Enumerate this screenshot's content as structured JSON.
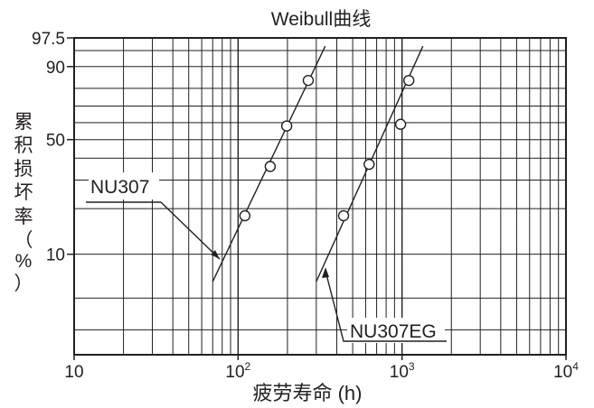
{
  "chart_data": {
    "type": "scatter",
    "title": "Weibull曲线",
    "xlabel": "疲劳寿命 (h)",
    "ylabel": [
      "累",
      "积",
      "损",
      "坏",
      "率",
      "（",
      "%",
      "）"
    ],
    "x_scale": "log",
    "x_range": [
      10,
      10000
    ],
    "x_ticks": [
      {
        "value": 10,
        "base": "10",
        "exp": ""
      },
      {
        "value": 100,
        "base": "10",
        "exp": "2"
      },
      {
        "value": 1000,
        "base": "10",
        "exp": "3"
      },
      {
        "value": 10000,
        "base": "10",
        "exp": "4"
      }
    ],
    "y_scale": "weibull",
    "y_range": [
      2,
      97.5
    ],
    "y_ticks": [
      {
        "value": 97.5,
        "label": "97.5"
      },
      {
        "value": 90,
        "label": "90"
      },
      {
        "value": 50,
        "label": "50"
      },
      {
        "value": 10,
        "label": "10"
      }
    ],
    "grid": true,
    "series": [
      {
        "name": "NU307",
        "points": [
          {
            "x": 110,
            "y": 18
          },
          {
            "x": 157,
            "y": 36
          },
          {
            "x": 198,
            "y": 58
          },
          {
            "x": 268,
            "y": 84
          }
        ],
        "fit_line": [
          {
            "x": 70,
            "y": 6.5
          },
          {
            "x": 340,
            "y": 96
          }
        ]
      },
      {
        "name": "NU307EG",
        "points": [
          {
            "x": 440,
            "y": 18
          },
          {
            "x": 630,
            "y": 37
          },
          {
            "x": 980,
            "y": 59
          },
          {
            "x": 1100,
            "y": 84
          }
        ],
        "fit_line": [
          {
            "x": 300,
            "y": 6.5
          },
          {
            "x": 1340,
            "y": 96
          }
        ]
      }
    ]
  }
}
